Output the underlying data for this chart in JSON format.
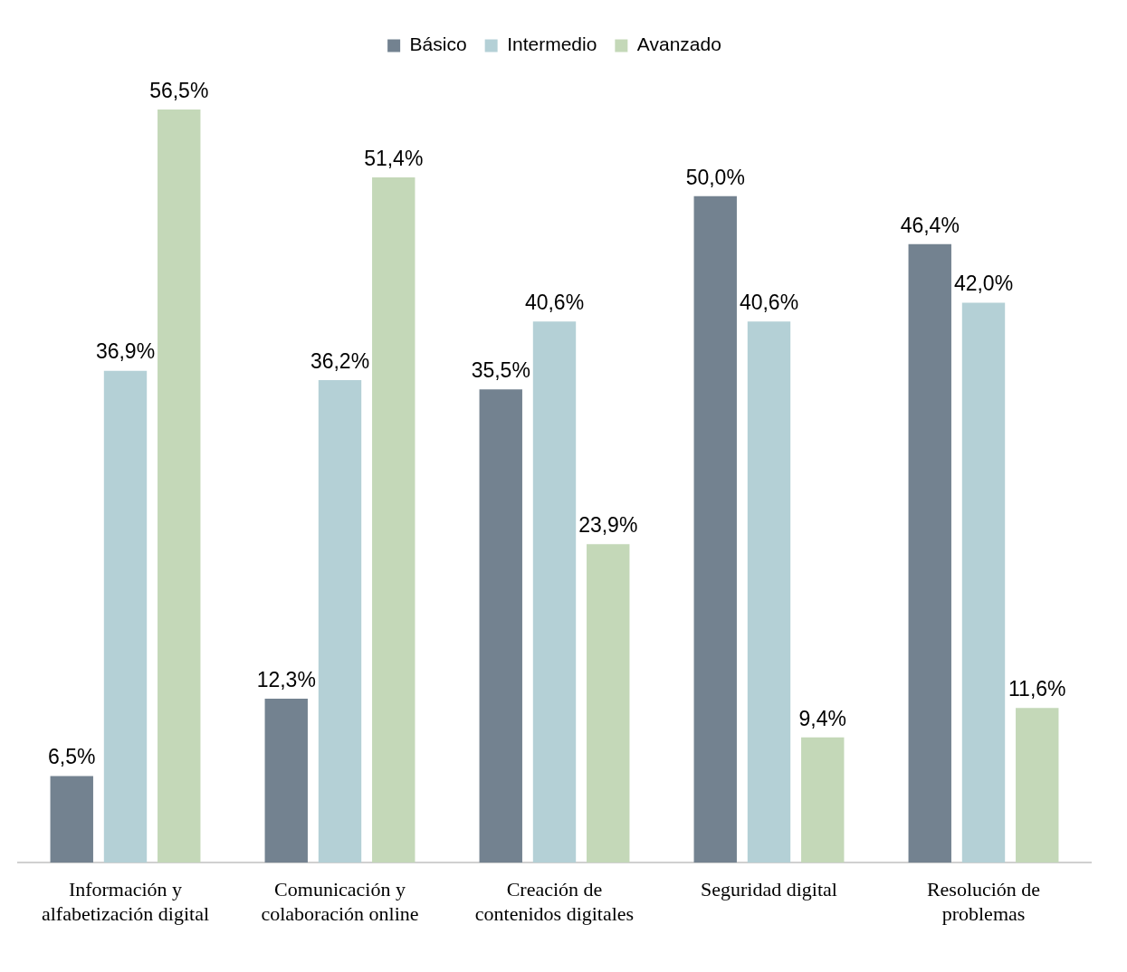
{
  "chart_data": {
    "type": "bar",
    "categories": [
      "Información y alfabetización digital",
      "Comunicación y colaboración online",
      "Creación de contenidos digitales",
      "Seguridad digital",
      "Resolución de problemas"
    ],
    "series": [
      {
        "name": "Básico",
        "color": "#738290",
        "values": [
          6.5,
          12.3,
          35.5,
          50.0,
          46.4
        ],
        "value_labels": [
          "6,5%",
          "12,3%",
          "35,5%",
          "50,0%",
          "46,4%"
        ]
      },
      {
        "name": "Intermedio",
        "color": "#b4d0d6",
        "values": [
          36.9,
          36.2,
          40.6,
          40.6,
          42.0
        ],
        "value_labels": [
          "36,9%",
          "36,2%",
          "40,6%",
          "40,6%",
          "42,0%"
        ]
      },
      {
        "name": "Avanzado",
        "color": "#c4d8b8",
        "values": [
          56.5,
          51.4,
          23.9,
          9.4,
          11.6
        ],
        "value_labels": [
          "56,5%",
          "51,4%",
          "23,9%",
          "9,4%",
          "11,6%"
        ]
      }
    ],
    "legend": "top"
  }
}
